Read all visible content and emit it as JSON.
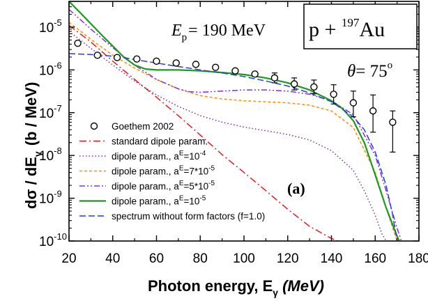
{
  "chart_data": {
    "type": "line",
    "xlabel": {
      "main": "Photon energy, E",
      "sub": "γ",
      "unit": "(MeV)"
    },
    "ylabel": {
      "main": "dσ / dE",
      "sub": "γ",
      "unit": "(b / MeV)"
    },
    "xlim": [
      20,
      180
    ],
    "ylim": [
      1e-10,
      4e-05
    ],
    "y_scale": "log",
    "x_ticks": [
      20,
      40,
      60,
      80,
      100,
      120,
      140,
      160,
      180
    ],
    "x_tick_labels": [
      "20",
      "40",
      "60",
      "80",
      "100",
      "120",
      "140",
      "160",
      "180"
    ],
    "y_ticks": [
      1e-10,
      1e-09,
      1e-08,
      1e-07,
      1e-06,
      1e-05
    ],
    "y_tick_labels": [
      {
        "base": "10",
        "exp": "-10"
      },
      {
        "base": "10",
        "exp": "-9"
      },
      {
        "base": "10",
        "exp": "-8"
      },
      {
        "base": "10",
        "exp": "-7"
      },
      {
        "base": "10",
        "exp": "-6"
      },
      {
        "base": "10",
        "exp": "-5"
      }
    ],
    "grid": false,
    "annotations": {
      "energy": {
        "label": "E",
        "sub": "p",
        "value": "= 190 MeV"
      },
      "reaction": {
        "prefix": "p + ",
        "mass": "197",
        "element": "Au"
      },
      "angle": {
        "label": "θ",
        "value": "= 75",
        "unit": "o"
      },
      "panel": "(a)"
    },
    "legend_position": "bottom-left",
    "experiment": {
      "name": "Goethem 2002",
      "points": [
        {
          "x": 24,
          "y": 4.2e-06,
          "err": null
        },
        {
          "x": 33,
          "y": 2.2e-06,
          "err": null
        },
        {
          "x": 42,
          "y": 1.95e-06,
          "err": null
        },
        {
          "x": 51,
          "y": 1.8e-06,
          "err": null
        },
        {
          "x": 60,
          "y": 1.6e-06,
          "err": null
        },
        {
          "x": 69,
          "y": 1.45e-06,
          "err": null
        },
        {
          "x": 78,
          "y": 1.35e-06,
          "err": null
        },
        {
          "x": 87,
          "y": 1.15e-06,
          "err": null
        },
        {
          "x": 96,
          "y": 9.5e-07,
          "err": null
        },
        {
          "x": 105,
          "y": 8e-07,
          "err": null
        },
        {
          "x": 114,
          "y": 6.5e-07,
          "err": [
            5e-07,
            8.5e-07
          ]
        },
        {
          "x": 123,
          "y": 4.7e-07,
          "err": [
            3.4e-07,
            6.5e-07
          ]
        },
        {
          "x": 132,
          "y": 4e-07,
          "err": [
            2.8e-07,
            5.8e-07
          ]
        },
        {
          "x": 141,
          "y": 2.7e-07,
          "err": [
            1.6e-07,
            4.5e-07
          ]
        },
        {
          "x": 150,
          "y": 1.7e-07,
          "err": [
            8e-08,
            3.2e-07
          ]
        },
        {
          "x": 159,
          "y": 1.1e-07,
          "err": [
            3.5e-08,
            2.6e-07
          ]
        },
        {
          "x": 168,
          "y": 6e-08,
          "err": [
            1.2e-08,
            1.1e-07
          ]
        }
      ]
    },
    "series": [
      {
        "name": "standard dipole param.",
        "color": "#e41a1c",
        "dash": "10,4,2,4",
        "width": 1.5,
        "x": [
          20,
          30,
          40,
          50,
          60,
          70,
          80,
          90,
          100,
          110,
          120,
          130,
          140,
          143
        ],
        "y": [
          1.1e-05,
          4.5e-06,
          1.6e-06,
          6e-07,
          2.3e-07,
          8.5e-08,
          3e-08,
          1.05e-08,
          4e-09,
          1.5e-09,
          5.5e-10,
          2.2e-10,
          1.15e-10,
          1e-10
        ]
      },
      {
        "name": "dipole param., a^E=10^-4",
        "legend": {
          "prefix": "dipole param., a",
          "sup1": "E",
          "mid": "=10",
          "sup2": "-4"
        },
        "color": "#7b2aa0",
        "dash": "1.5,3",
        "width": 1.5,
        "x": [
          20,
          30,
          40,
          50,
          60,
          70,
          80,
          90,
          100,
          110,
          120,
          130,
          140,
          150,
          155,
          160,
          163,
          165
        ],
        "y": [
          8e-06,
          3.2e-06,
          1.3e-06,
          5.5e-07,
          2.6e-07,
          1.4e-07,
          8.5e-08,
          6e-08,
          4.6e-08,
          3.8e-08,
          3.1e-08,
          2.3e-08,
          1.3e-08,
          4.5e-09,
          1.5e-09,
          4e-10,
          1.5e-10,
          1e-10
        ]
      },
      {
        "name": "dipole param., a^E=7*10^-5",
        "legend": {
          "prefix": "dipole param., a",
          "sup1": "E",
          "mid": "=7*10",
          "sup2": "-5"
        },
        "color": "#ff8c00",
        "dash": "4,3",
        "width": 1.5,
        "x": [
          20,
          30,
          40,
          50,
          60,
          70,
          80,
          90,
          100,
          110,
          120,
          130,
          140,
          150,
          160,
          165,
          168,
          170
        ],
        "y": [
          1.3e-05,
          5.2e-06,
          2.2e-06,
          1.1e-06,
          6e-07,
          3.6e-07,
          2.5e-07,
          2.1e-07,
          1.9e-07,
          1.8e-07,
          1.7e-07,
          1.5e-07,
          1.1e-07,
          4.5e-08,
          4e-09,
          6e-10,
          2e-10,
          1e-10
        ]
      },
      {
        "name": "dipole param., a^E=5*10^-5",
        "legend": {
          "prefix": "dipole param., a",
          "sup1": "E",
          "mid": "=5*10",
          "sup2": "-5"
        },
        "color": "#8a2be2",
        "dash": "8,3,2,3,2,3",
        "width": 1.5,
        "x": [
          20,
          30,
          40,
          50,
          60,
          70,
          75,
          80,
          90,
          100,
          110,
          120,
          130,
          140,
          150,
          160,
          165,
          170,
          172
        ],
        "y": [
          2.6e-05,
          9e-06,
          3.3e-06,
          1.3e-06,
          6e-07,
          3.6e-07,
          3.1e-07,
          3e-07,
          3.2e-07,
          3.4e-07,
          3.4e-07,
          3.2e-07,
          2.7e-07,
          1.9e-07,
          9e-08,
          1e-08,
          1.5e-09,
          2e-10,
          1e-10
        ]
      },
      {
        "name": "dipole param., a^E=10^-5",
        "legend": {
          "prefix": "dipole param., a",
          "sup1": "E",
          "mid": "=10",
          "sup2": "-5"
        },
        "color": "#1a9a1a",
        "dash": "",
        "width": 2.2,
        "x": [
          20,
          25,
          30,
          35,
          40,
          45,
          50,
          55,
          60,
          70,
          80,
          90,
          100,
          110,
          120,
          130,
          140,
          145,
          150,
          155,
          160,
          165,
          170,
          171
        ],
        "y": [
          4e-05,
          2.2e-05,
          1.2e-05,
          6.5e-06,
          3.6e-06,
          2e-06,
          1.3e-06,
          1.05e-06,
          1e-06,
          1e-06,
          9.5e-07,
          8.7e-07,
          7.8e-07,
          6.5e-07,
          5e-07,
          3.4e-07,
          1.9e-07,
          1.25e-07,
          6.5e-08,
          2e-08,
          3.5e-09,
          6e-10,
          1.3e-10,
          1e-10
        ]
      },
      {
        "name": "spectrum without form factors (f=1.0)",
        "color": "#1f3fe0",
        "dash": "9,4",
        "width": 1.5,
        "x": [
          20,
          30,
          40,
          45,
          50,
          60,
          70,
          80,
          90,
          100,
          110,
          120,
          130,
          140,
          150,
          155,
          160,
          165,
          168,
          170
        ],
        "y": [
          2.4e-06,
          2.3e-06,
          2.1e-06,
          1.95e-06,
          1.75e-06,
          1.45e-06,
          1.2e-06,
          1e-06,
          8.5e-07,
          7e-07,
          5.5e-07,
          4.2e-07,
          2.9e-07,
          1.8e-07,
          8e-08,
          4e-08,
          1.2e-08,
          2e-09,
          4e-10,
          1e-10
        ]
      }
    ]
  }
}
